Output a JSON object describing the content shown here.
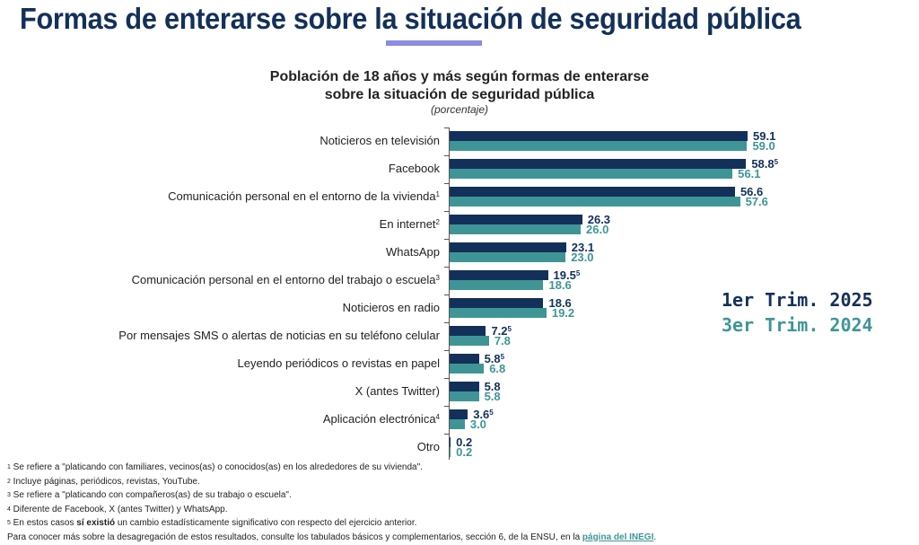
{
  "page_title": "Formas de enterarse sobre la situación de seguridad pública",
  "chart_data": {
    "type": "bar",
    "orientation": "horizontal",
    "title_line1": "Población de 18 años y más según formas de enterarse",
    "title_line2": "sobre la situación de seguridad pública",
    "unit": "(porcentaje)",
    "colors": {
      "s2025": "#13305a",
      "s2024": "#3f9596"
    },
    "xlim": [
      0,
      60
    ],
    "categories": [
      {
        "label": "Noticieros en televisión",
        "note": ""
      },
      {
        "label": "Facebook",
        "note": ""
      },
      {
        "label": "Comunicación personal en el entorno de la vivienda",
        "note": "1"
      },
      {
        "label": "En internet",
        "note": "2"
      },
      {
        "label": "WhatsApp",
        "note": ""
      },
      {
        "label": "Comunicación personal en el entorno del trabajo o escuela",
        "note": "3"
      },
      {
        "label": "Noticieros en radio",
        "note": ""
      },
      {
        "label": "Por mensajes SMS o alertas de noticias en su teléfono celular",
        "note": ""
      },
      {
        "label": "Leyendo periódicos o revistas en papel",
        "note": ""
      },
      {
        "label": "X (antes Twitter)",
        "note": ""
      },
      {
        "label": "Aplicación electrónica",
        "note": "4"
      },
      {
        "label": "Otro",
        "note": ""
      }
    ],
    "series": [
      {
        "name": "1er Trim. 2025",
        "values": [
          59.1,
          58.8,
          56.6,
          26.3,
          23.1,
          19.5,
          18.6,
          7.2,
          5.8,
          5.8,
          3.6,
          0.2
        ],
        "labels": [
          "59.1",
          "58.8",
          "56.6",
          "26.3",
          "23.1",
          "19.5",
          "18.6",
          "7.2",
          "5.8",
          "5.8",
          "3.6",
          "0.2"
        ],
        "notes": [
          "",
          "5",
          "",
          "",
          "",
          "5",
          "",
          "5",
          "5",
          "",
          "5",
          ""
        ]
      },
      {
        "name": "3er Trim. 2024",
        "values": [
          59.0,
          56.1,
          57.6,
          26.0,
          23.0,
          18.6,
          19.2,
          7.8,
          6.8,
          5.8,
          3.0,
          0.2
        ],
        "labels": [
          "59.0",
          "56.1",
          "57.6",
          "26.0",
          "23.0",
          "18.6",
          "19.2",
          "7.8",
          "6.8",
          "5.8",
          "3.0",
          "0.2"
        ],
        "notes": [
          "",
          "",
          "",
          "",
          "",
          "",
          "",
          "",
          "",
          "",
          "",
          ""
        ]
      }
    ],
    "legend_placement": "right"
  },
  "footnotes": {
    "n1": {
      "mark": "1",
      "text": " Se refiere a \"platicando con familiares, vecinos(as) o conocidos(as) en los alrededores de su vivienda\"."
    },
    "n2": {
      "mark": "2",
      "text": " Incluye páginas, periódicos, revistas, YouTube."
    },
    "n3": {
      "mark": "3",
      "text": " Se refiere a \"platicando con compañeros(as) de su trabajo o escuela\"."
    },
    "n4": {
      "mark": "4",
      "text": " Diferente de Facebook, X (antes Twitter) y WhatsApp."
    },
    "n5": {
      "mark": "5",
      "pre": " En estos casos ",
      "bold": "sí existió",
      "post": " un cambio estadísticamente significativo con respecto del ejercicio anterior."
    },
    "more": {
      "text": "Para conocer más sobre la desagregación de estos resultados, consulte los tabulados básicos y complementarios, sección 6, de la ENSU, en la ",
      "link": "página del INEGI",
      "end": "."
    }
  }
}
